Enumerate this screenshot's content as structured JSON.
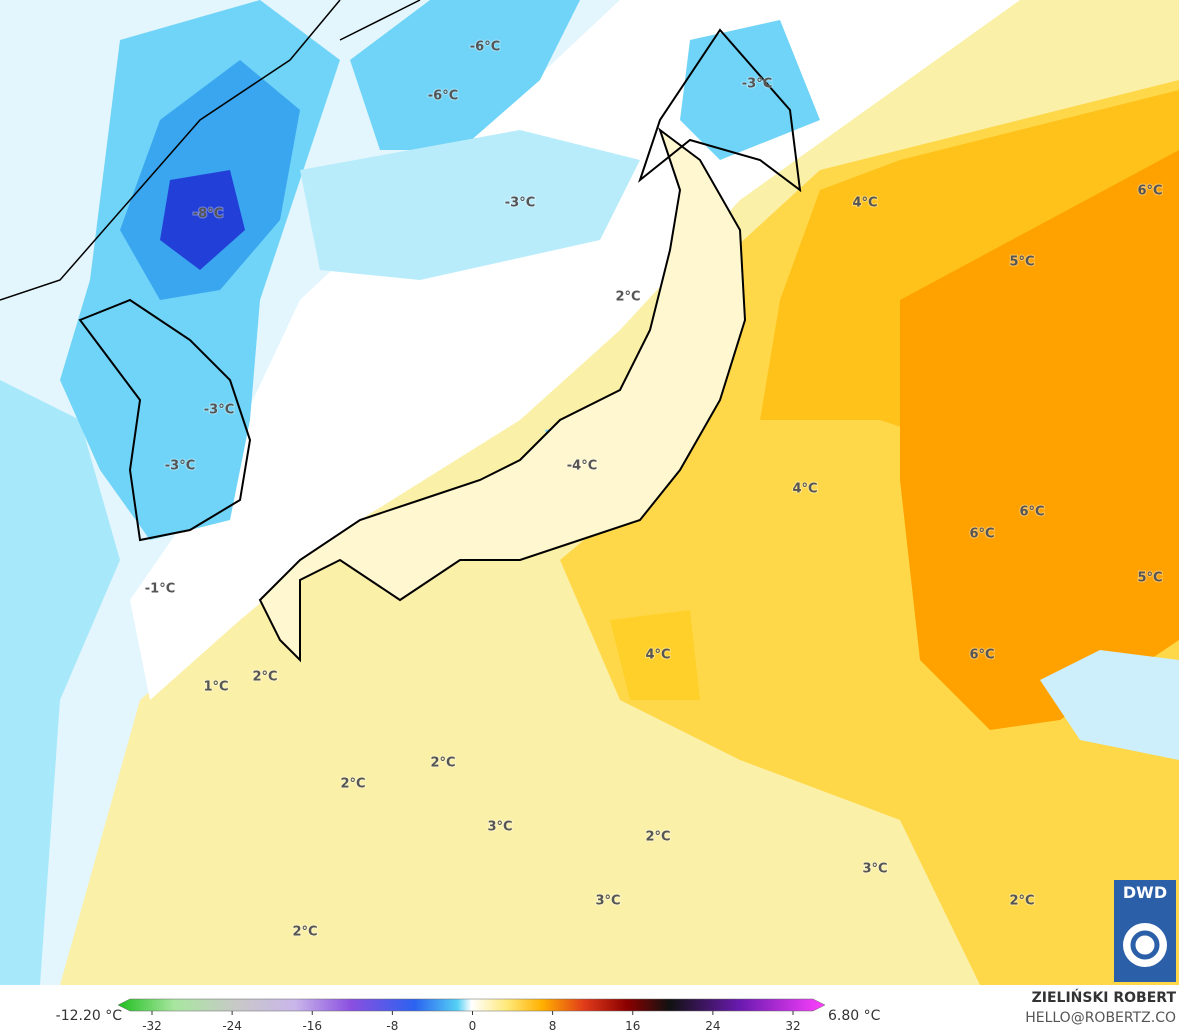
{
  "map": {
    "contour_labels": [
      "-6°C",
      "-6°C",
      "-3°C",
      "-8°C",
      "-3°C",
      "4°C",
      "6°C",
      "5°C",
      "2°C",
      "-3°C",
      "-3°C",
      "-4°C",
      "4°C",
      "6°C",
      "6°C",
      "5°C",
      "-1°C",
      "4°C",
      "6°C",
      "1°C",
      "2°C",
      "2°C",
      "2°C",
      "3°C",
      "2°C",
      "3°C",
      "3°C",
      "2°C",
      "2°C"
    ],
    "logo": "DWD"
  },
  "colorbar": {
    "min_label": "-12.20 °C",
    "max_label": "6.80 °C",
    "ticks": [
      -32,
      -24,
      -16,
      -8,
      0,
      8,
      16,
      24,
      32
    ]
  },
  "credit": {
    "author": "ZIELIŃSKI ROBERT",
    "email": "HELLO@ROBERTZ.CO"
  }
}
